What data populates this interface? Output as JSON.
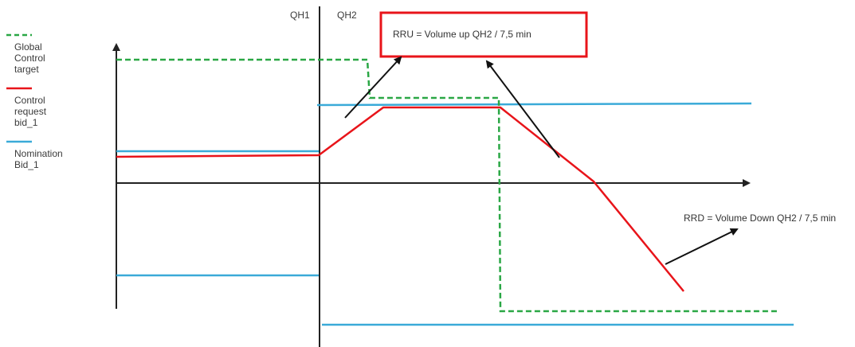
{
  "legend": {
    "items": [
      {
        "lines": [
          "Global",
          "Control",
          "target"
        ],
        "color": "#2aa745",
        "dash": true
      },
      {
        "lines": [
          "Control",
          "request",
          "bid_1"
        ],
        "color": "#e8141a",
        "dash": false
      },
      {
        "lines": [
          "Nomination",
          "Bid_1"
        ],
        "color": "#3aaad8",
        "dash": false
      }
    ]
  },
  "periods": {
    "qh1": "QH1",
    "qh2": "QH2"
  },
  "annotations": {
    "rru": "RRU = Volume up QH2 / 7,5 min",
    "rrd": "RRD = Volume Down QH2 / 7,5 min"
  },
  "colors": {
    "axis": "#222222",
    "global_target": "#2aa745",
    "control_request": "#e8141a",
    "nomination": "#3aaad8",
    "box_border": "#e8141a",
    "pointer": "#111111"
  }
}
